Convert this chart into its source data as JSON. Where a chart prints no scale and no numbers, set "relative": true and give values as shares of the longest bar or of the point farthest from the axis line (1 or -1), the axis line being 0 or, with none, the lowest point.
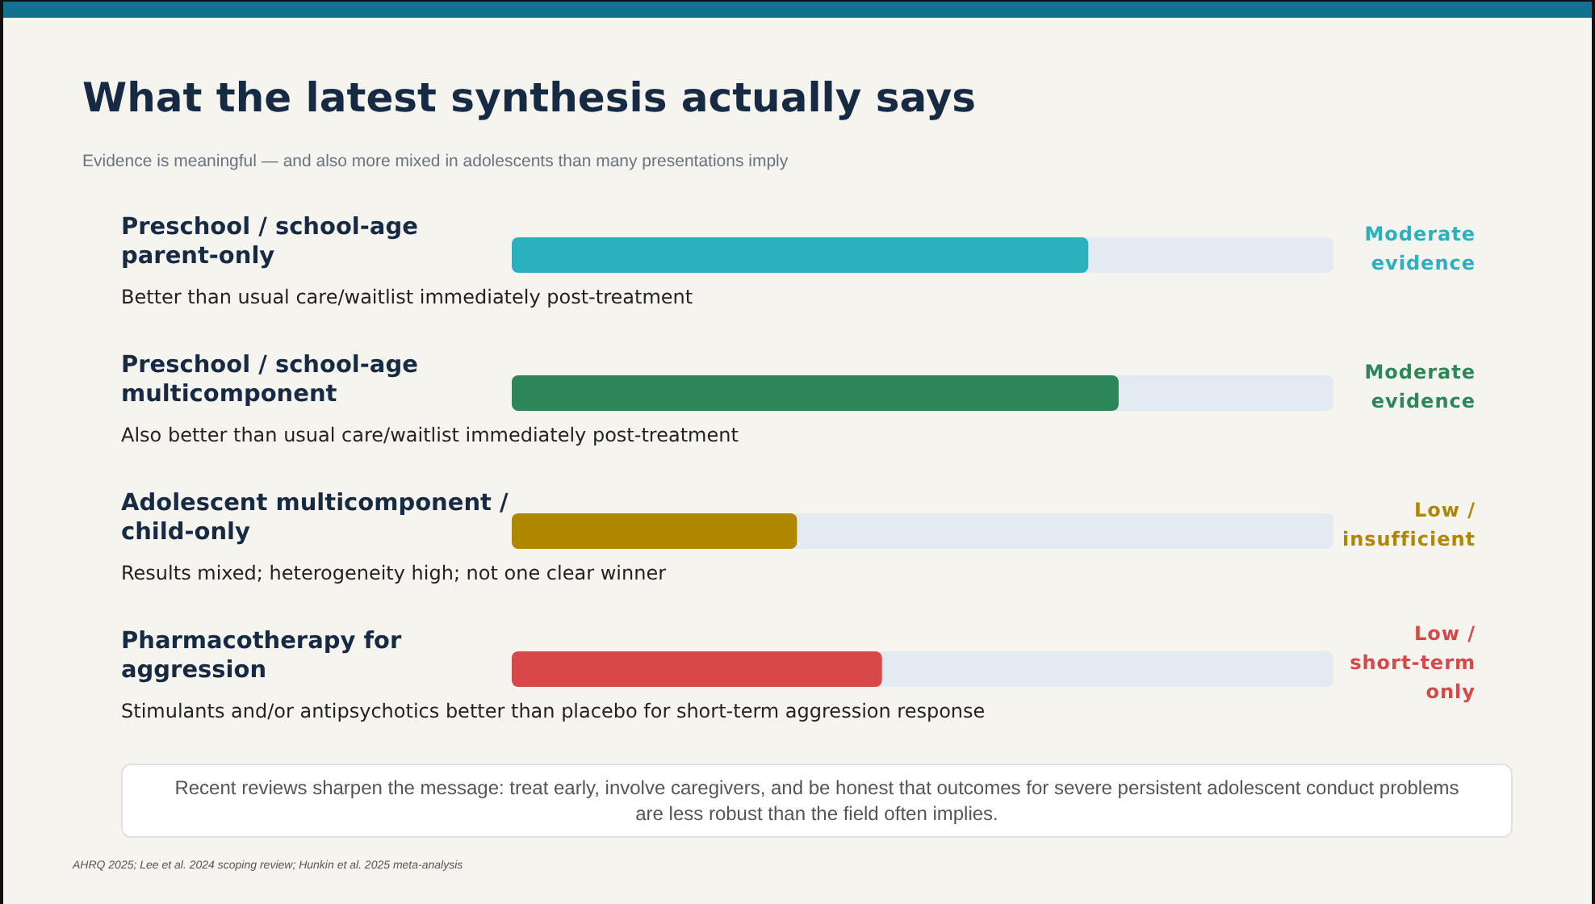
{
  "chart_data": {
    "type": "bar",
    "orientation": "horizontal",
    "relative": true,
    "title": "What the latest synthesis actually says",
    "subtitle": "Evidence is meaningful — and also more mixed in adolescents than many presentations imply",
    "categories": [
      "Preschool / school-age parent-only",
      "Preschool / school-age multicomponent",
      "Adolescent multicomponent / child-only",
      "Pharmacotherapy for aggression"
    ],
    "values": [
      0.95,
      1,
      0.47,
      0.61
    ],
    "colors": [
      "#2bb0be",
      "#2d8659",
      "#b08800",
      "#d94848"
    ],
    "annotations": [
      "Better than usual care/waitlist immediately post-treatment",
      "Moderate evidence",
      "Also better than usual care/waitlist immediately post-treatment",
      "Moderate evidence",
      "Results mixed; heterogeneity high; not one clear winner",
      "Low / insufficient",
      "Stimulants and/or antipsychotics better than placebo for short-term aggression response",
      "Low / short-term only",
      "Recent reviews sharpen the message: treat early, involve caregivers, and be honest that outcomes for severe persistent adolescent conduct problems are less robust than the field often implies.",
      "AHRQ 2025; Lee et al. 2024 scoping review; Hunkin et al. 2025 meta-analysis"
    ]
  }
}
